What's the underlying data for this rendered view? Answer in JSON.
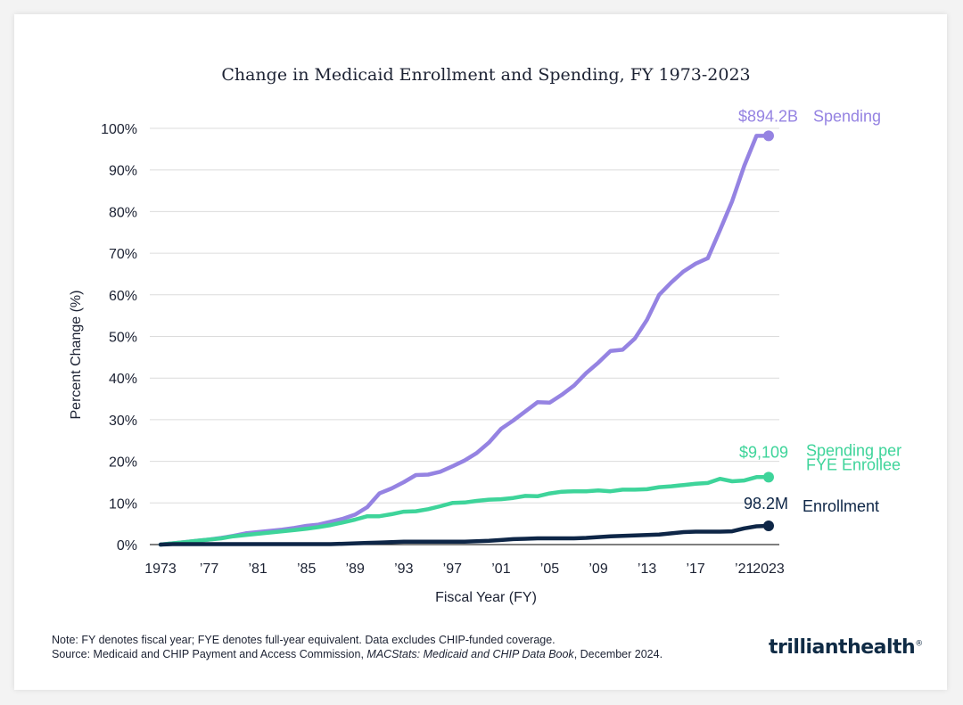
{
  "chart_data": {
    "type": "line",
    "title": "Change in Medicaid Enrollment and Spending, FY 1973-2023",
    "xlabel": "Fiscal Year (FY)",
    "ylabel": "Percent Change (%)",
    "ylim": [
      0,
      100
    ],
    "yticks": [
      "0%",
      "10%",
      "20%",
      "30%",
      "40%",
      "50%",
      "60%",
      "70%",
      "80%",
      "90%",
      "100%"
    ],
    "xticks": [
      {
        "year": 1973,
        "label": "1973"
      },
      {
        "year": 1977,
        "label": "’77"
      },
      {
        "year": 1981,
        "label": "’81"
      },
      {
        "year": 1985,
        "label": "’85"
      },
      {
        "year": 1989,
        "label": "’89"
      },
      {
        "year": 1993,
        "label": "’93"
      },
      {
        "year": 1997,
        "label": "’97"
      },
      {
        "year": 2001,
        "label": "’01"
      },
      {
        "year": 2005,
        "label": "’05"
      },
      {
        "year": 2009,
        "label": "’09"
      },
      {
        "year": 2013,
        "label": "’13"
      },
      {
        "year": 2017,
        "label": "’17"
      },
      {
        "year": 2021,
        "label": "’21"
      },
      {
        "year": 2023,
        "label": "2023"
      }
    ],
    "x": [
      1973,
      1974,
      1975,
      1976,
      1977,
      1978,
      1979,
      1980,
      1981,
      1982,
      1983,
      1984,
      1985,
      1986,
      1987,
      1988,
      1989,
      1990,
      1991,
      1992,
      1993,
      1994,
      1995,
      1996,
      1997,
      1998,
      1999,
      2000,
      2001,
      2002,
      2003,
      2004,
      2005,
      2006,
      2007,
      2008,
      2009,
      2010,
      2011,
      2012,
      2013,
      2014,
      2015,
      2016,
      2017,
      2018,
      2019,
      2020,
      2021,
      2022,
      2023
    ],
    "series": [
      {
        "name": "Spending",
        "end_label": "$894.2B",
        "label": "Spending",
        "color": "#9583e2",
        "values": [
          0,
          0.3,
          0.6,
          0.9,
          1.2,
          1.6,
          2.1,
          2.7,
          3.0,
          3.3,
          3.6,
          4.0,
          4.5,
          4.8,
          5.5,
          6.2,
          7.2,
          9.0,
          12.3,
          13.5,
          15.0,
          16.7,
          16.8,
          17.5,
          18.8,
          20.2,
          22.0,
          24.5,
          27.8,
          29.8,
          32.0,
          34.2,
          34.1,
          36.0,
          38.2,
          41.2,
          43.7,
          46.5,
          46.8,
          49.5,
          54.0,
          60.0,
          63.0,
          65.6,
          67.5,
          68.8,
          75.5,
          82.5,
          91.0,
          98.2,
          98.2
        ]
      },
      {
        "name": "Spending per FYE Enrollee",
        "end_label": "$9,109",
        "label_lines": [
          "Spending per",
          "FYE Enrollee"
        ],
        "color": "#3ed49a",
        "values": [
          0,
          0.3,
          0.6,
          0.9,
          1.2,
          1.5,
          2.0,
          2.3,
          2.6,
          2.9,
          3.2,
          3.5,
          3.8,
          4.2,
          4.7,
          5.3,
          6.0,
          6.8,
          6.8,
          7.3,
          7.9,
          8.0,
          8.5,
          9.2,
          10.0,
          10.1,
          10.5,
          10.8,
          10.9,
          11.2,
          11.7,
          11.6,
          12.3,
          12.7,
          12.8,
          12.8,
          13.0,
          12.8,
          13.2,
          13.2,
          13.3,
          13.8,
          14.0,
          14.3,
          14.6,
          14.8,
          15.8,
          15.2,
          15.4,
          16.2,
          16.2
        ]
      },
      {
        "name": "Enrollment",
        "end_label": "98.2M",
        "label": "Enrollment",
        "color": "#0e2647",
        "values": [
          0,
          0.1,
          0.1,
          0.1,
          0.1,
          0.1,
          0.1,
          0.1,
          0.1,
          0.1,
          0.1,
          0.1,
          0.1,
          0.1,
          0.1,
          0.2,
          0.3,
          0.4,
          0.5,
          0.6,
          0.7,
          0.7,
          0.7,
          0.7,
          0.7,
          0.7,
          0.8,
          0.9,
          1.1,
          1.3,
          1.4,
          1.5,
          1.5,
          1.5,
          1.5,
          1.6,
          1.8,
          2.0,
          2.1,
          2.2,
          2.3,
          2.4,
          2.7,
          3.0,
          3.1,
          3.1,
          3.1,
          3.2,
          3.9,
          4.4,
          4.5
        ]
      }
    ]
  },
  "note": {
    "line1": "Note: FY denotes fiscal year; FYE denotes full-year equivalent. Data excludes CHIP-funded coverage.",
    "source_prefix": "Source: Medicaid and CHIP Payment and Access Commission, ",
    "source_title": "MACStats: Medicaid and CHIP Data Book",
    "source_suffix": ", December 2024."
  },
  "logo": {
    "part1": "trilliant",
    "part2": "health",
    "reg": "®"
  }
}
